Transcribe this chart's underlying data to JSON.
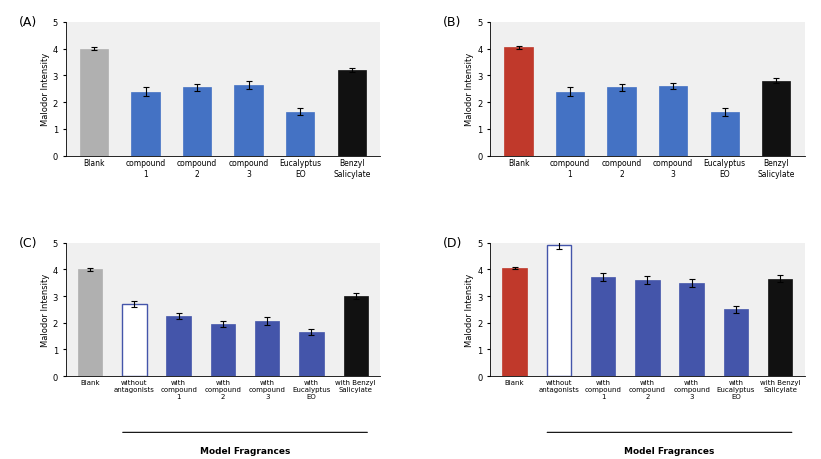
{
  "subplots": [
    {
      "label": "(A)",
      "categories": [
        "Blank",
        "compound\n1",
        "compound\n2",
        "compound\n3",
        "Eucalyptus\nEO",
        "Benzyl\nSalicylate"
      ],
      "values": [
        4.0,
        2.4,
        2.55,
        2.65,
        1.65,
        3.2
      ],
      "errors": [
        0.05,
        0.15,
        0.12,
        0.15,
        0.12,
        0.08
      ],
      "colors": [
        "#b0b0b0",
        "#4472c4",
        "#4472c4",
        "#4472c4",
        "#4472c4",
        "#111111"
      ],
      "edgecolors": [
        "#b0b0b0",
        "#4472c4",
        "#4472c4",
        "#4472c4",
        "#4472c4",
        "#111111"
      ],
      "fill": [
        true,
        true,
        true,
        true,
        true,
        true
      ],
      "ylabel": "Malodor Intensity",
      "ylim": [
        0,
        5
      ],
      "yticks": [
        0,
        1,
        2,
        3,
        4,
        5
      ],
      "xlabel_group": null,
      "n_cats": 6
    },
    {
      "label": "(B)",
      "categories": [
        "Blank",
        "compound\n1",
        "compound\n2",
        "compound\n3",
        "Eucalyptus\nEO",
        "Benzyl\nSalicylate"
      ],
      "values": [
        4.05,
        2.4,
        2.55,
        2.6,
        1.65,
        2.8
      ],
      "errors": [
        0.05,
        0.15,
        0.12,
        0.12,
        0.15,
        0.1
      ],
      "colors": [
        "#c0392b",
        "#4472c4",
        "#4472c4",
        "#4472c4",
        "#4472c4",
        "#111111"
      ],
      "edgecolors": [
        "#c0392b",
        "#4472c4",
        "#4472c4",
        "#4472c4",
        "#4472c4",
        "#111111"
      ],
      "fill": [
        true,
        true,
        true,
        true,
        true,
        true
      ],
      "ylabel": "Malodor Intensity",
      "ylim": [
        0,
        5
      ],
      "yticks": [
        0,
        1,
        2,
        3,
        4,
        5
      ],
      "xlabel_group": null,
      "n_cats": 6
    },
    {
      "label": "(C)",
      "categories": [
        "Blank",
        "without\nantagonists",
        "with\ncompound\n1",
        "with\ncompound\n2",
        "with\ncompound\n3",
        "with\nEucalyptus\nEO",
        "with Benzyl\nSalicylate"
      ],
      "values": [
        4.0,
        2.7,
        2.25,
        1.95,
        2.05,
        1.65,
        3.0
      ],
      "errors": [
        0.05,
        0.12,
        0.12,
        0.1,
        0.15,
        0.1,
        0.12
      ],
      "colors": [
        "#b0b0b0",
        "#ffffff",
        "#4455aa",
        "#4455aa",
        "#4455aa",
        "#4455aa",
        "#111111"
      ],
      "edgecolors": [
        "#b0b0b0",
        "#4455aa",
        "#4455aa",
        "#4455aa",
        "#4455aa",
        "#4455aa",
        "#111111"
      ],
      "fill": [
        true,
        false,
        true,
        true,
        true,
        true,
        true
      ],
      "ylabel": "Malodor Intensity",
      "ylim": [
        0,
        5
      ],
      "yticks": [
        0,
        1,
        2,
        3,
        4,
        5
      ],
      "xlabel_group": "Model Fragrances",
      "n_cats": 7
    },
    {
      "label": "(D)",
      "categories": [
        "Blank",
        "without\nantagonists",
        "with\ncompound\n1",
        "with\ncompound\n2",
        "with\ncompound\n3",
        "with\nEucalyptus\nEO",
        "with Benzyl\nSalicylate"
      ],
      "values": [
        4.05,
        4.9,
        3.7,
        3.6,
        3.5,
        2.5,
        3.65
      ],
      "errors": [
        0.05,
        0.15,
        0.15,
        0.15,
        0.15,
        0.12,
        0.12
      ],
      "colors": [
        "#c0392b",
        "#ffffff",
        "#4455aa",
        "#4455aa",
        "#4455aa",
        "#4455aa",
        "#111111"
      ],
      "edgecolors": [
        "#c0392b",
        "#4455aa",
        "#4455aa",
        "#4455aa",
        "#4455aa",
        "#4455aa",
        "#111111"
      ],
      "fill": [
        true,
        false,
        true,
        true,
        true,
        true,
        true
      ],
      "ylabel": "Malodor Intensity",
      "ylim": [
        0,
        5
      ],
      "yticks": [
        0,
        1,
        2,
        3,
        4,
        5
      ],
      "xlabel_group": "Model Fragrances",
      "n_cats": 7
    }
  ],
  "background_color": "#f0f0f0",
  "fig_bg": "#ffffff"
}
